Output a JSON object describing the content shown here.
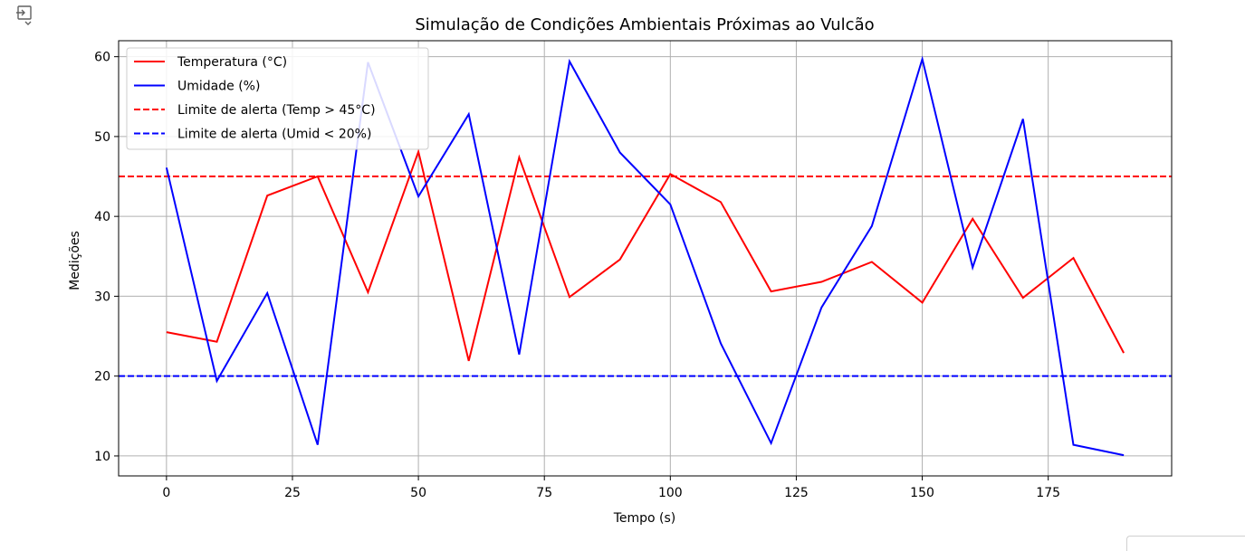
{
  "chart_data": {
    "type": "line",
    "title": "Simulação de Condições Ambientais Próximas ao Vulcão",
    "xlabel": "Tempo (s)",
    "ylabel": "Medições",
    "xlim": [
      -9.5,
      199.5
    ],
    "ylim": [
      7.5,
      62.0
    ],
    "xticks": [
      0,
      25,
      50,
      75,
      100,
      125,
      150,
      175
    ],
    "yticks": [
      10,
      20,
      30,
      40,
      50,
      60
    ],
    "grid": true,
    "legend": "upper-left",
    "x": [
      0,
      10,
      20,
      30,
      40,
      50,
      60,
      70,
      80,
      90,
      100,
      110,
      120,
      130,
      140,
      150,
      160,
      170,
      180,
      190
    ],
    "series": [
      {
        "name": "Temperatura (°C)",
        "color": "#ff0000",
        "style": "solid",
        "values": [
          25.5,
          24.3,
          42.6,
          45.0,
          30.5,
          48.1,
          21.9,
          47.4,
          29.9,
          34.6,
          45.3,
          41.8,
          30.6,
          31.8,
          34.3,
          29.2,
          39.7,
          29.8,
          34.8,
          22.9
        ]
      },
      {
        "name": "Umidade (%)",
        "color": "#0000ff",
        "style": "solid",
        "values": [
          46.1,
          19.4,
          30.4,
          11.4,
          59.3,
          42.5,
          52.8,
          22.7,
          59.4,
          48.0,
          41.5,
          24.1,
          11.6,
          28.6,
          38.8,
          59.7,
          33.6,
          52.2,
          11.4,
          10.1
        ]
      }
    ],
    "hlines": [
      {
        "name": "Limite de alerta (Temp > 45°C)",
        "y": 45,
        "color": "#ff0000",
        "style": "dashed"
      },
      {
        "name": "Limite de alerta (Umid < 20%)",
        "y": 20,
        "color": "#0000ff",
        "style": "dashed"
      }
    ]
  },
  "icons": {
    "cell_output": "output-toggle-icon"
  }
}
